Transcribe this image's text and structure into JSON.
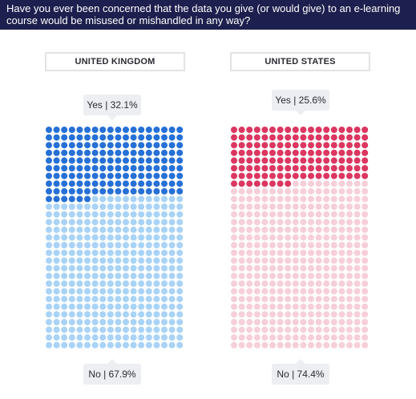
{
  "header": {
    "title": "Have you ever been concerned that the data you give (or would give) to an e-learning course would be misused or mishandled in any way?"
  },
  "colors": {
    "header_bg": "#1d1f4e",
    "uk_yes": "#2670d6",
    "uk_no": "#a9d3f7",
    "us_yes": "#db3760",
    "us_no": "#f6cfd9"
  },
  "chart_data": [
    {
      "type": "waffle",
      "title": "UNITED KINGDOM",
      "grid": {
        "columns": 18,
        "rows": 29
      },
      "categories": [
        "Yes",
        "No"
      ],
      "values": [
        32.1,
        67.9
      ],
      "labels": [
        "Yes | 32.1%",
        "No | 67.9%"
      ]
    },
    {
      "type": "waffle",
      "title": "UNITED STATES",
      "grid": {
        "columns": 18,
        "rows": 29
      },
      "categories": [
        "Yes",
        "No"
      ],
      "values": [
        25.6,
        74.4
      ],
      "labels": [
        "Yes | 25.6%",
        "No | 74.4%"
      ]
    }
  ]
}
